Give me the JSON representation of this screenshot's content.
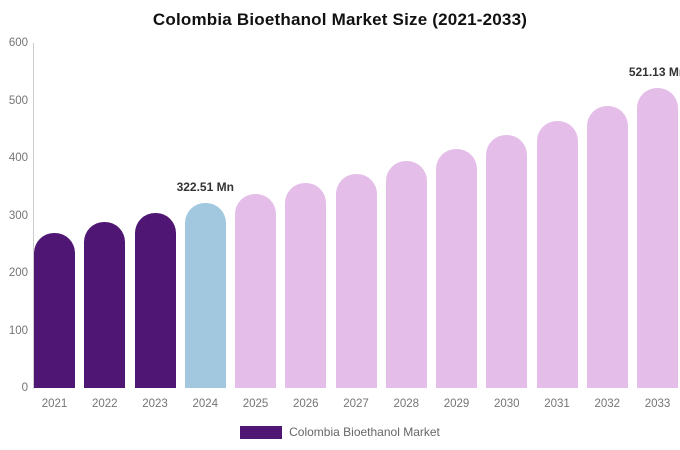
{
  "title": "Colombia Bioethanol Market Size (2021-2033)",
  "legend": {
    "label": "Colombia Bioethanol Market",
    "swatch_color": "#4F1773"
  },
  "chart_data": {
    "type": "bar",
    "title": "Colombia Bioethanol Market Size (2021-2033)",
    "unit": "Mn",
    "categories": [
      "2021",
      "2022",
      "2023",
      "2024",
      "2025",
      "2026",
      "2027",
      "2028",
      "2029",
      "2030",
      "2031",
      "2032",
      "2033"
    ],
    "values": [
      270,
      288,
      304,
      322.51,
      338,
      356,
      372,
      394,
      416,
      440,
      464,
      490,
      521.13
    ],
    "value_labels": {
      "2024": "322.51 Mn",
      "2033": "521.13 Mn"
    },
    "bar_colors": [
      "#4F1773",
      "#4F1773",
      "#4F1773",
      "#A2C8DF",
      "#E4BEE9",
      "#E4BEE9",
      "#E4BEE9",
      "#E4BEE9",
      "#E4BEE9",
      "#E4BEE9",
      "#E4BEE9",
      "#E4BEE9",
      "#E4BEE9"
    ],
    "xlabel": "",
    "ylabel": "",
    "ylim": [
      0,
      600
    ],
    "yticks": [
      600,
      500,
      400,
      300,
      200,
      100,
      0
    ],
    "grid": false,
    "legend_position": "bottom",
    "legend_entries": [
      "Colombia Bioethanol Market"
    ]
  },
  "colors": {
    "historical_bar": "#4F1773",
    "current_year_bar": "#A2C8DF",
    "forecast_bar": "#E4BEE9",
    "title_text": "#111111",
    "axis_text": "#757575",
    "axis_line": "#cccccc",
    "value_label_text": "#333333",
    "background": "#ffffff"
  }
}
